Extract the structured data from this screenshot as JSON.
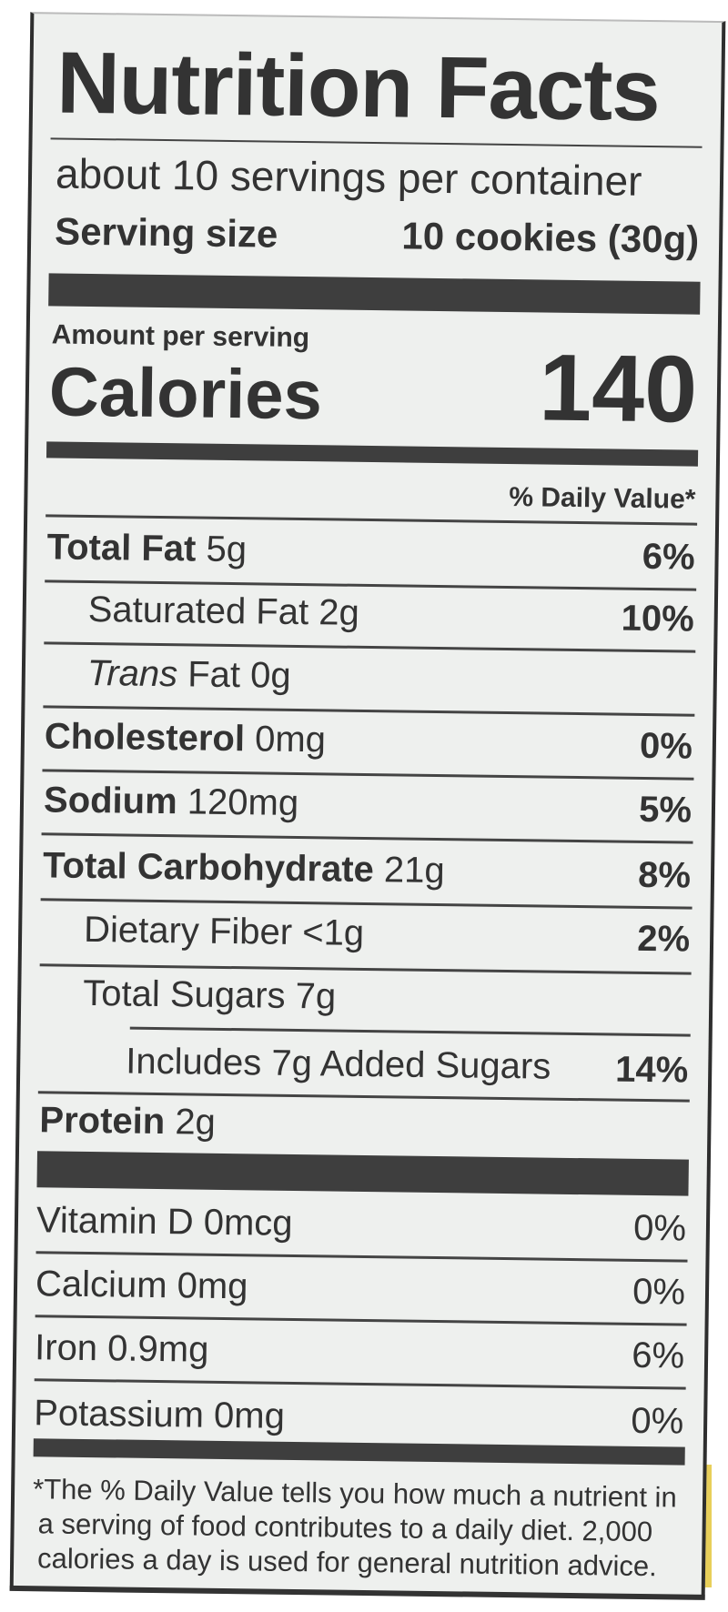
{
  "title": "Nutrition Facts",
  "servings_per_container": "about 10 servings per container",
  "serving_size_label": "Serving size",
  "serving_size_value": "10 cookies (30g)",
  "amount_per_serving": "Amount per serving",
  "calories_label": "Calories",
  "calories_value": "140",
  "daily_value_header": "% Daily Value*",
  "nutrients": [
    {
      "name": "Total Fat",
      "amount": "5g",
      "dv": "6%"
    },
    {
      "name": "Saturated Fat",
      "amount": "2g",
      "dv": "10%"
    },
    {
      "name": "Trans",
      "name_suffix": " Fat 0g"
    },
    {
      "name": "Cholesterol",
      "amount": "0mg",
      "dv": "0%"
    },
    {
      "name": "Sodium",
      "amount": "120mg",
      "dv": "5%"
    },
    {
      "name": "Total Carbohydrate",
      "amount": "21g",
      "dv": "8%"
    },
    {
      "name": "Dietary Fiber",
      "amount": "<1g",
      "dv": "2%"
    },
    {
      "name": "Total Sugars",
      "amount": "7g"
    },
    {
      "name": "Includes 7g Added Sugars",
      "dv": "14%"
    },
    {
      "name": "Protein",
      "amount": "2g"
    }
  ],
  "vitamins": [
    {
      "name": "Vitamin D 0mcg",
      "dv": "0%"
    },
    {
      "name": "Calcium 0mg",
      "dv": "0%"
    },
    {
      "name": "Iron 0.9mg",
      "dv": "6%"
    },
    {
      "name": "Potassium 0mg",
      "dv": "0%"
    }
  ],
  "footnote": [
    "*The % Daily Value tells you how much a nutrient in",
    "a serving of food contributes to a daily diet. 2,000",
    "calories a day is used for general nutrition advice."
  ],
  "colors": {
    "ink": "#333333",
    "label_bg": "#eef0ee",
    "accent_yellow": "#e8cf5a"
  }
}
